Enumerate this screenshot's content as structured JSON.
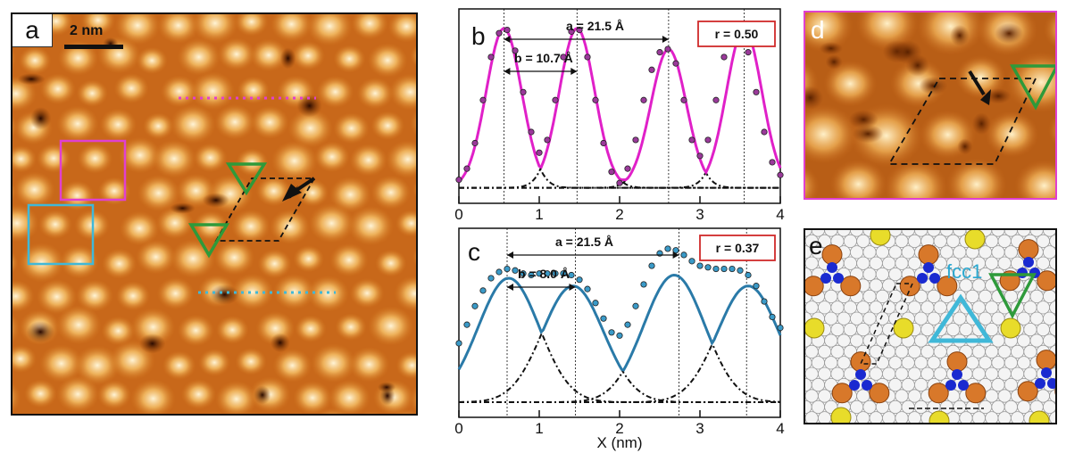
{
  "panel_a": {
    "label": "a",
    "scalebar_text": "2 nm"
  },
  "panel_d": {
    "label": "d"
  },
  "panel_e": {
    "label": "e",
    "site_text": "fcc1"
  },
  "colors": {
    "magenta": "#e040d0",
    "cyan": "#40b8d8",
    "green": "#2e9a3a",
    "stm_dark": "#6a2a00",
    "stm_bright": "#ffe6b0",
    "atom_orange": "#d8782a",
    "atom_yellow": "#e8dc2a",
    "atom_blue": "#1a2ad0"
  },
  "chart_data": [
    {
      "panel": "b",
      "type": "line",
      "xlim": [
        0,
        4
      ],
      "xticks": [
        "0",
        "1",
        "2",
        "3",
        "4"
      ],
      "xlabel": "",
      "annotation_a": "a = 21.5 Å",
      "annotation_b": "b = 10.7 Å",
      "ratio_label": "r = 0.50",
      "guide_lines_x": [
        0.56,
        1.47,
        2.61,
        3.55
      ],
      "fit_peaks": [
        {
          "x": 0.56,
          "amp": 1.0,
          "sigma": 0.22
        },
        {
          "x": 1.47,
          "amp": 1.0,
          "sigma": 0.22
        },
        {
          "x": 2.61,
          "amp": 0.87,
          "sigma": 0.22
        },
        {
          "x": 3.55,
          "amp": 1.0,
          "sigma": 0.22
        }
      ],
      "baseline": 0.05,
      "series": [
        {
          "role": "data",
          "x": [
            0.0,
            0.1,
            0.2,
            0.3,
            0.4,
            0.5,
            0.6,
            0.7,
            0.8,
            0.9,
            1.0,
            1.1,
            1.2,
            1.3,
            1.4,
            1.5,
            1.6,
            1.7,
            1.8,
            1.9,
            2.0,
            2.1,
            2.2,
            2.3,
            2.4,
            2.5,
            2.6,
            2.7,
            2.8,
            2.9,
            3.0,
            3.1,
            3.2,
            3.3,
            3.4,
            3.5,
            3.6,
            3.7,
            3.8,
            3.9,
            4.0
          ],
          "y": [
            0.05,
            0.12,
            0.28,
            0.55,
            0.82,
            0.97,
            0.99,
            0.86,
            0.6,
            0.35,
            0.22,
            0.3,
            0.55,
            0.82,
            0.98,
            0.99,
            0.82,
            0.55,
            0.28,
            0.1,
            0.03,
            0.12,
            0.3,
            0.55,
            0.74,
            0.85,
            0.87,
            0.78,
            0.55,
            0.3,
            0.2,
            0.3,
            0.55,
            0.82,
            0.97,
            0.99,
            0.85,
            0.6,
            0.35,
            0.16,
            0.08
          ]
        }
      ]
    },
    {
      "panel": "c",
      "type": "line",
      "xlim": [
        0,
        4
      ],
      "xticks": [
        "0",
        "1",
        "2",
        "3",
        "4"
      ],
      "xlabel": "X (nm)",
      "annotation_a": "a = 21.5 Å",
      "annotation_b": "b = 8.0 Å",
      "ratio_label": "r = 0.37",
      "guide_lines_x": [
        0.6,
        1.45,
        2.74,
        3.58
      ],
      "fit_peaks": [
        {
          "x": 0.62,
          "amp": 0.8,
          "sigma": 0.38
        },
        {
          "x": 1.42,
          "amp": 0.75,
          "sigma": 0.38
        },
        {
          "x": 2.68,
          "amp": 0.82,
          "sigma": 0.38
        },
        {
          "x": 3.6,
          "amp": 0.75,
          "sigma": 0.38
        }
      ],
      "baseline": 0.0,
      "series": [
        {
          "role": "data",
          "x": [
            0.0,
            0.1,
            0.2,
            0.3,
            0.4,
            0.5,
            0.6,
            0.7,
            0.8,
            0.9,
            1.0,
            1.1,
            1.2,
            1.3,
            1.4,
            1.5,
            1.6,
            1.7,
            1.8,
            1.9,
            2.0,
            2.1,
            2.2,
            2.3,
            2.4,
            2.5,
            2.6,
            2.7,
            2.8,
            2.9,
            3.0,
            3.1,
            3.2,
            3.3,
            3.4,
            3.5,
            3.6,
            3.7,
            3.8,
            3.9,
            4.0
          ],
          "y": [
            0.38,
            0.5,
            0.62,
            0.72,
            0.8,
            0.84,
            0.86,
            0.85,
            0.83,
            0.82,
            0.83,
            0.83,
            0.83,
            0.83,
            0.82,
            0.79,
            0.73,
            0.64,
            0.54,
            0.45,
            0.43,
            0.5,
            0.62,
            0.76,
            0.88,
            0.96,
            0.99,
            0.98,
            0.95,
            0.91,
            0.88,
            0.87,
            0.86,
            0.86,
            0.86,
            0.85,
            0.82,
            0.75,
            0.65,
            0.55,
            0.48
          ]
        }
      ]
    }
  ]
}
